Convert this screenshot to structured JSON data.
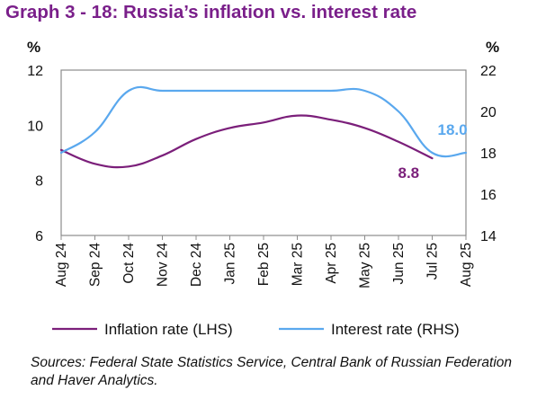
{
  "title": "Graph 3 - 18: Russia’s inflation vs. interest rate",
  "source_note": "Sources: Federal State Statistics Service, Central Bank of Russian Federation and Haver Analytics.",
  "colors": {
    "title": "#7a1f8a",
    "inflation": "#7b1f7a",
    "interest": "#5aa8ee",
    "frame": "#8c8c8c"
  },
  "chart_data": {
    "type": "line",
    "categories": [
      "Aug 24",
      "Sep 24",
      "Oct 24",
      "Nov 24",
      "Dec 24",
      "Jan 25",
      "Feb 25",
      "Mar 25",
      "Apr 25",
      "May 25",
      "Jun 25",
      "Jul 25",
      "Aug 25"
    ],
    "y_left": {
      "unit": "%",
      "ylim": [
        6,
        12
      ],
      "ticks": [
        6,
        8,
        10,
        12
      ]
    },
    "y_right": {
      "unit": "%",
      "ylim": [
        14,
        22
      ],
      "ticks": [
        14,
        16,
        18,
        20,
        22
      ]
    },
    "series": [
      {
        "name": "Inflation rate (LHS)",
        "axis": "left",
        "color": "#7b1f7a",
        "values": [
          9.1,
          8.6,
          8.5,
          8.9,
          9.5,
          9.9,
          10.1,
          10.35,
          10.2,
          9.9,
          9.4,
          8.8,
          null
        ],
        "end_label": "8.8"
      },
      {
        "name": "Interest rate (RHS)",
        "axis": "right",
        "color": "#5aa8ee",
        "values": [
          18.0,
          19.0,
          21.0,
          21.0,
          21.0,
          21.0,
          21.0,
          21.0,
          21.0,
          21.0,
          20.0,
          18.0,
          18.0
        ],
        "end_label": "18.0"
      }
    ],
    "grid": false,
    "legend": "bottom"
  }
}
